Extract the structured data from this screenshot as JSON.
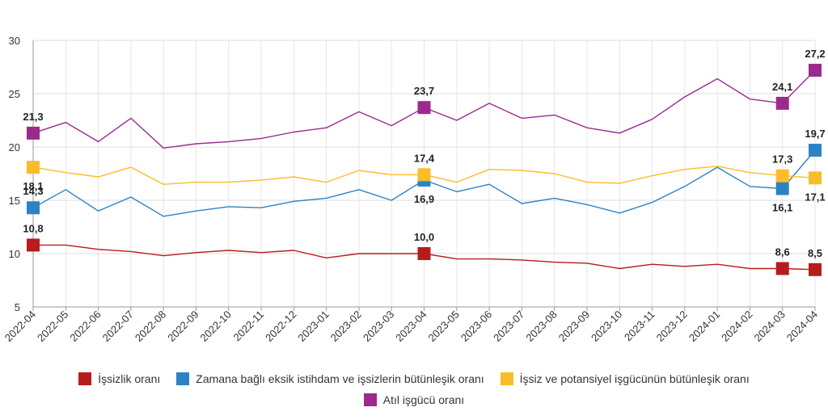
{
  "chart_data": {
    "type": "line",
    "x": [
      "2022-04",
      "2022-05",
      "2022-06",
      "2022-07",
      "2022-08",
      "2022-09",
      "2022-10",
      "2022-11",
      "2022-12",
      "2023-01",
      "2023-02",
      "2023-03",
      "2023-04",
      "2023-05",
      "2023-06",
      "2023-07",
      "2023-08",
      "2023-09",
      "2023-10",
      "2023-11",
      "2023-12",
      "2024-01",
      "2024-02",
      "2024-03",
      "2024-04"
    ],
    "ylim": [
      5,
      30
    ],
    "yticks": [
      5,
      10,
      15,
      20,
      25,
      30
    ],
    "series": [
      {
        "name": "İşsizlik oranı",
        "color": "#b71c1c",
        "values": [
          10.8,
          10.8,
          10.4,
          10.2,
          9.8,
          10.1,
          10.3,
          10.1,
          10.3,
          9.6,
          10.0,
          10.0,
          10.0,
          9.5,
          9.5,
          9.4,
          9.2,
          9.1,
          8.6,
          9.0,
          8.8,
          9.0,
          8.6,
          8.6,
          8.5
        ],
        "labels": [
          {
            "index": 0,
            "text": "10,8",
            "pos": "above"
          },
          {
            "index": 12,
            "text": "10,0",
            "pos": "above"
          },
          {
            "index": 23,
            "text": "8,6",
            "pos": "above"
          },
          {
            "index": 24,
            "text": "8,5",
            "pos": "above"
          }
        ]
      },
      {
        "name": "Zamana bağlı eksik istihdam ve işsizlerin bütünleşik oranı",
        "color": "#2b83c6",
        "values": [
          14.3,
          16.0,
          14.0,
          15.3,
          13.5,
          14.0,
          14.4,
          14.3,
          14.9,
          15.2,
          16.0,
          15.0,
          16.9,
          15.8,
          16.5,
          14.7,
          15.2,
          14.6,
          13.8,
          14.8,
          16.3,
          18.1,
          16.3,
          16.1,
          19.7
        ],
        "labels": [
          {
            "index": 0,
            "text": "14,3",
            "pos": "above"
          },
          {
            "index": 12,
            "text": "16,9",
            "pos": "below"
          },
          {
            "index": 23,
            "text": "16,1",
            "pos": "below"
          },
          {
            "index": 24,
            "text": "19,7",
            "pos": "above"
          }
        ]
      },
      {
        "name": "İşsiz ve potansiyel işgücünün bütünleşik oranı",
        "color": "#fbbc2a",
        "values": [
          18.1,
          17.6,
          17.2,
          18.1,
          16.5,
          16.7,
          16.7,
          16.9,
          17.2,
          16.7,
          17.8,
          17.4,
          17.4,
          16.7,
          17.9,
          17.8,
          17.5,
          16.7,
          16.6,
          17.3,
          17.9,
          18.2,
          17.6,
          17.3,
          17.1
        ],
        "labels": [
          {
            "index": 0,
            "text": "18,1",
            "pos": "below"
          },
          {
            "index": 12,
            "text": "17,4",
            "pos": "above"
          },
          {
            "index": 23,
            "text": "17,3",
            "pos": "above"
          },
          {
            "index": 24,
            "text": "17,1",
            "pos": "below"
          }
        ]
      },
      {
        "name": "Atıl işgücü oranı",
        "color": "#9c2a8c",
        "values": [
          21.3,
          22.3,
          20.5,
          22.7,
          19.9,
          20.3,
          20.5,
          20.8,
          21.4,
          21.8,
          23.3,
          22.0,
          23.7,
          22.5,
          24.1,
          22.7,
          23.0,
          21.8,
          21.3,
          22.6,
          24.7,
          26.4,
          24.5,
          24.1,
          27.2
        ],
        "labels": [
          {
            "index": 0,
            "text": "21,3",
            "pos": "above"
          },
          {
            "index": 12,
            "text": "23,7",
            "pos": "above"
          },
          {
            "index": 23,
            "text": "24,1",
            "pos": "above"
          },
          {
            "index": 24,
            "text": "27,2",
            "pos": "above"
          }
        ]
      }
    ]
  }
}
